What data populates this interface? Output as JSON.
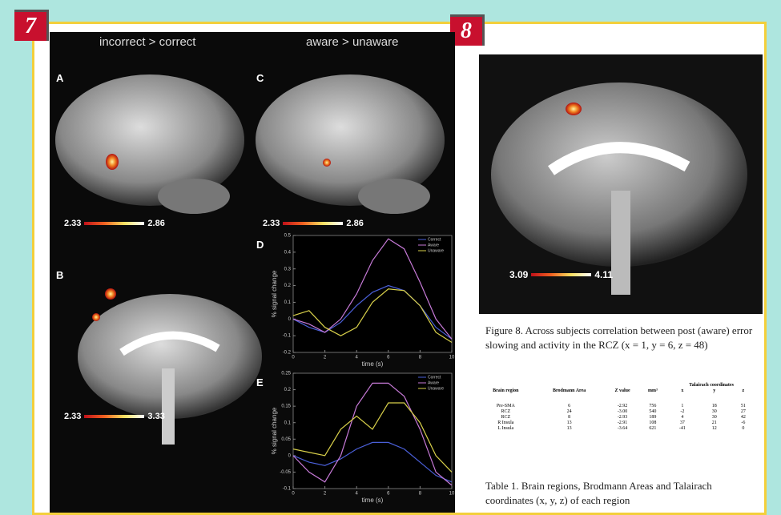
{
  "badges": [
    "7",
    "8"
  ],
  "figure7": {
    "headings": [
      "incorrect > correct",
      "aware > unaware"
    ],
    "panels": [
      "A",
      "B",
      "C"
    ],
    "colorbars": [
      [
        "2.33",
        "2.86"
      ],
      [
        "2.33",
        "2.86"
      ],
      [
        "2.33",
        "3.33"
      ]
    ]
  },
  "chart_data": [
    {
      "type": "line",
      "panel": "D",
      "xlabel": "time (s)",
      "ylabel": "% signal change",
      "x": [
        0,
        1,
        2,
        3,
        4,
        5,
        6,
        7,
        8,
        9,
        10
      ],
      "xlim": [
        0,
        10
      ],
      "xticks": [
        0,
        2,
        4,
        6,
        8,
        10
      ],
      "ylim": [
        -0.2,
        0.5
      ],
      "yticks": [
        -0.2,
        -0.1,
        0,
        0.1,
        0.2,
        0.3,
        0.4,
        0.5
      ],
      "series": [
        {
          "name": "Correct",
          "color": "#4a5fd8",
          "values": [
            0,
            -0.05,
            -0.08,
            -0.02,
            0.08,
            0.16,
            0.2,
            0.17,
            0.08,
            -0.05,
            -0.12
          ]
        },
        {
          "name": "Aware",
          "color": "#c77ad8",
          "values": [
            0,
            -0.03,
            -0.08,
            0,
            0.15,
            0.35,
            0.48,
            0.42,
            0.22,
            0,
            -0.12
          ]
        },
        {
          "name": "Unaware",
          "color": "#d8d04a",
          "values": [
            0.02,
            0.05,
            -0.05,
            -0.1,
            -0.05,
            0.1,
            0.18,
            0.17,
            0.08,
            -0.08,
            -0.14
          ]
        }
      ]
    },
    {
      "type": "line",
      "panel": "E",
      "xlabel": "time (s)",
      "ylabel": "% signal change",
      "x": [
        0,
        1,
        2,
        3,
        4,
        5,
        6,
        7,
        8,
        9,
        10
      ],
      "xlim": [
        0,
        10
      ],
      "xticks": [
        0,
        2,
        4,
        6,
        8,
        10
      ],
      "ylim": [
        -0.1,
        0.25
      ],
      "yticks": [
        -0.1,
        -0.05,
        0,
        0.05,
        0.1,
        0.15,
        0.2,
        0.25
      ],
      "series": [
        {
          "name": "Correct",
          "color": "#4a5fd8",
          "values": [
            0,
            -0.02,
            -0.03,
            -0.01,
            0.02,
            0.04,
            0.04,
            0.02,
            -0.02,
            -0.06,
            -0.08
          ]
        },
        {
          "name": "Aware",
          "color": "#c77ad8",
          "values": [
            0,
            -0.05,
            -0.08,
            0,
            0.15,
            0.22,
            0.22,
            0.18,
            0.08,
            -0.05,
            -0.09
          ]
        },
        {
          "name": "Unaware",
          "color": "#d8d04a",
          "values": [
            0.02,
            0.01,
            0,
            0.08,
            0.12,
            0.08,
            0.16,
            0.16,
            0.1,
            0,
            -0.05
          ]
        }
      ]
    }
  ],
  "figure8": {
    "colorbar": [
      "3.09",
      "4.11"
    ],
    "caption": "Figure 8. Across subjects correlation between post (aware) error slowing and activity in the RCZ (x = 1, y = 6, z = 48)"
  },
  "table": {
    "group_header": "Talairach coordinates",
    "headers": [
      "Brain region",
      "Brodmann Area",
      "Z value",
      "mm³",
      "x",
      "y",
      "z"
    ],
    "rows": [
      [
        "Pre-SMA",
        "6",
        "-2.92",
        "756",
        "1",
        "18",
        "51"
      ],
      [
        "RCZ",
        "24",
        "-3.00",
        "540",
        "-2",
        "30",
        "27"
      ],
      [
        "RCZ",
        "8",
        "-2.93",
        "189",
        "4",
        "30",
        "42"
      ],
      [
        "R Insula",
        "13",
        "-2.91",
        "108",
        "37",
        "21",
        "-6"
      ],
      [
        "L Insula",
        "13",
        "-3.64",
        "621",
        "-41",
        "12",
        "0"
      ]
    ],
    "caption": "Table 1. Brain regions, Brodmann Areas and Talairach coordinates (x, y, z) of each region"
  }
}
